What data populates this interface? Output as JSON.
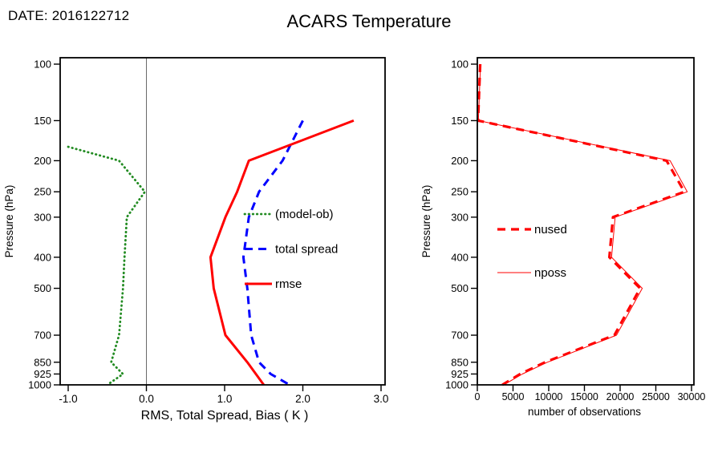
{
  "header": {
    "date_label": "DATE: 2016122712",
    "title": "ACARS Temperature"
  },
  "chart_data": [
    {
      "type": "line",
      "panel": "left",
      "xlabel": "RMS, Total Spread, Bias ( K )",
      "ylabel": "Pressure (hPa)",
      "xlim": [
        -1.0,
        3.0
      ],
      "xticks": [
        -1.0,
        0.0,
        1.0,
        2.0,
        3.0
      ],
      "xtick_labels": [
        "-1.0",
        "0.0",
        "1.0",
        "2.0",
        "3.0"
      ],
      "yscale": "log",
      "ylim": [
        100,
        1000
      ],
      "yticks": [
        100,
        150,
        200,
        250,
        300,
        400,
        500,
        700,
        850,
        925,
        1000
      ],
      "ytick_labels": [
        "100",
        "150",
        "200",
        "250",
        "300",
        "400",
        "500",
        "700",
        "850",
        "925",
        "1000"
      ],
      "grid": false,
      "zero_line": true,
      "legend_position": "inside-right",
      "series": [
        {
          "name": "(model-ob)",
          "color": "#228b22",
          "style": "dotted",
          "width": 2.8,
          "points": [
            [
              -1.0,
              181
            ],
            [
              -0.35,
              200
            ],
            [
              -0.02,
              250
            ],
            [
              -0.25,
              300
            ],
            [
              -0.28,
              400
            ],
            [
              -0.3,
              500
            ],
            [
              -0.35,
              700
            ],
            [
              -0.45,
              850
            ],
            [
              -0.3,
              925
            ],
            [
              -0.5,
              1000
            ]
          ]
        },
        {
          "name": "total spread",
          "color": "#0000ff",
          "style": "dashed",
          "width": 3,
          "points": [
            [
              2.0,
              150
            ],
            [
              1.74,
              200
            ],
            [
              1.44,
              250
            ],
            [
              1.31,
              300
            ],
            [
              1.24,
              400
            ],
            [
              1.29,
              500
            ],
            [
              1.34,
              700
            ],
            [
              1.44,
              850
            ],
            [
              1.59,
              925
            ],
            [
              1.83,
              1000
            ]
          ]
        },
        {
          "name": "rmse",
          "color": "#ff0000",
          "style": "solid",
          "width": 3,
          "points": [
            [
              2.65,
              150
            ],
            [
              1.31,
              200
            ],
            [
              1.16,
              250
            ],
            [
              1.01,
              300
            ],
            [
              0.82,
              400
            ],
            [
              0.86,
              500
            ],
            [
              1.01,
              700
            ],
            [
              1.29,
              850
            ],
            [
              1.4,
              925
            ],
            [
              1.5,
              1000
            ]
          ]
        }
      ]
    },
    {
      "type": "line",
      "panel": "right",
      "xlabel": "number of observations",
      "ylabel": "Pressure (hPa)",
      "xlim": [
        0,
        30000
      ],
      "xticks": [
        0,
        5000,
        10000,
        15000,
        20000,
        25000,
        30000
      ],
      "xtick_labels": [
        "0",
        "5000",
        "10000",
        "15000",
        "20000",
        "25000",
        "30000"
      ],
      "yscale": "log",
      "ylim": [
        100,
        1000
      ],
      "yticks": [
        100,
        150,
        200,
        250,
        300,
        400,
        500,
        700,
        850,
        925,
        1000
      ],
      "ytick_labels": [
        "100",
        "150",
        "200",
        "250",
        "300",
        "400",
        "500",
        "700",
        "850",
        "925",
        "1000"
      ],
      "grid": false,
      "zero_line": false,
      "legend_position": "inside-left",
      "series": [
        {
          "name": "nposs",
          "color": "#ff0000",
          "style": "solid",
          "width": 1,
          "points": [
            [
              450,
              100
            ],
            [
              150,
              150
            ],
            [
              27000,
              200
            ],
            [
              29400,
              250
            ],
            [
              19300,
              300
            ],
            [
              18800,
              400
            ],
            [
              23100,
              500
            ],
            [
              19500,
              700
            ],
            [
              9800,
              850
            ],
            [
              6300,
              925
            ],
            [
              3700,
              1000
            ]
          ]
        },
        {
          "name": "nused",
          "color": "#ff0000",
          "style": "dashed",
          "width": 3.2,
          "points": [
            [
              400,
              100
            ],
            [
              100,
              150
            ],
            [
              26500,
              200
            ],
            [
              29000,
              250
            ],
            [
              19000,
              300
            ],
            [
              18500,
              400
            ],
            [
              22800,
              500
            ],
            [
              19200,
              700
            ],
            [
              9500,
              850
            ],
            [
              6000,
              925
            ],
            [
              3500,
              1000
            ]
          ]
        }
      ]
    }
  ]
}
